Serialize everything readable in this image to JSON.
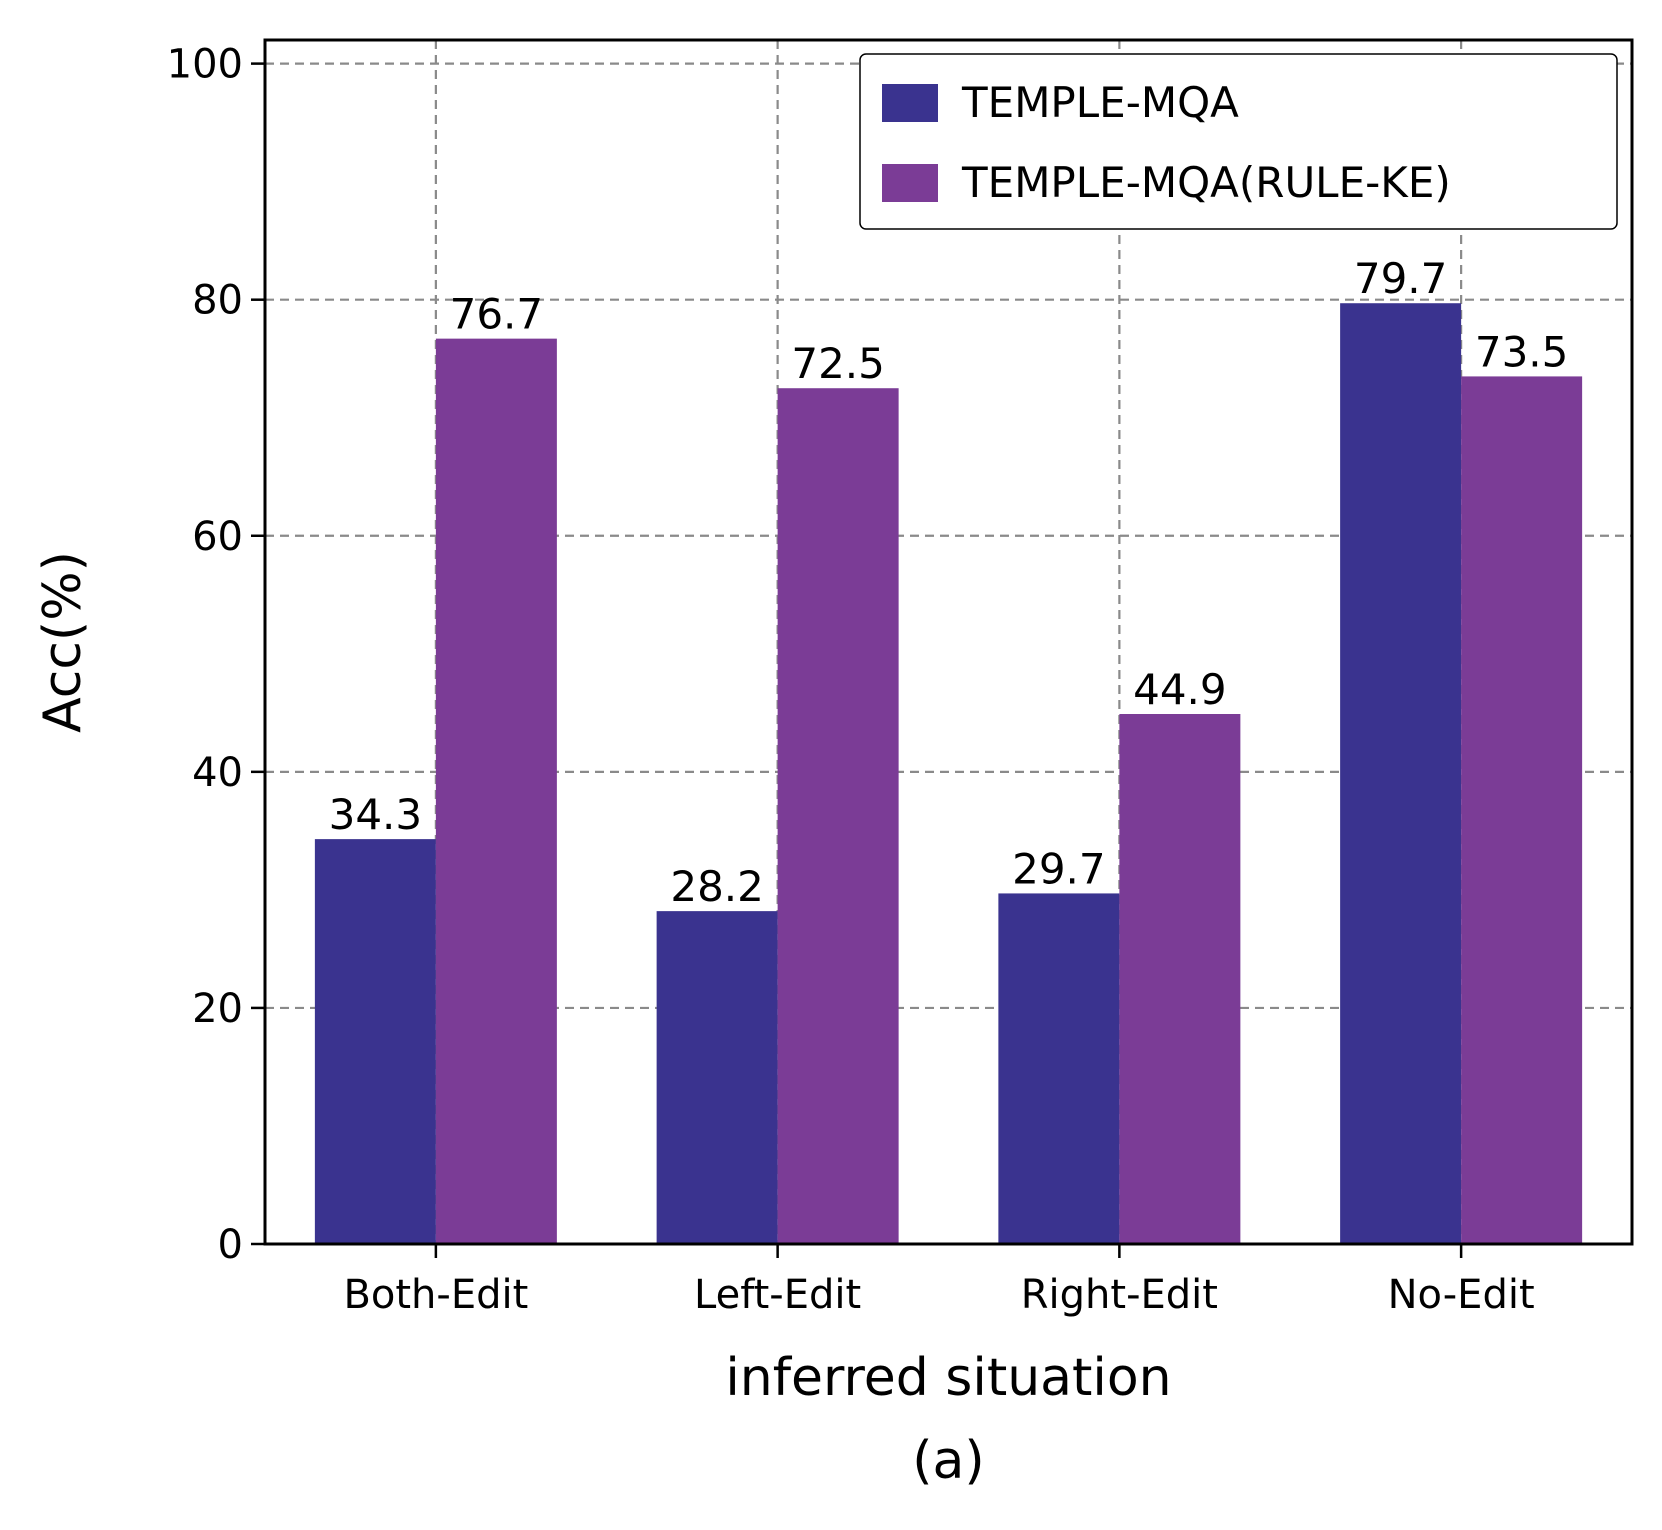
{
  "chart_data": {
    "type": "bar",
    "xlabel": "inferred situation",
    "caption": "(a)",
    "ylabel": "Acc(%)",
    "categories": [
      "Both-Edit",
      "Left-Edit",
      "Right-Edit",
      "No-Edit"
    ],
    "series": [
      {
        "name": "TEMPLE-MQA",
        "color": "#3a338f",
        "values": [
          34.3,
          28.2,
          29.7,
          79.7
        ],
        "labels": [
          "34.3",
          "28.2",
          "29.7",
          "79.7"
        ]
      },
      {
        "name": "TEMPLE-MQA(RULE-KE)",
        "color": "#7b3c96",
        "values": [
          76.7,
          72.5,
          44.9,
          73.5
        ],
        "labels": [
          "76.7",
          "72.5",
          "44.9",
          "73.5"
        ]
      }
    ],
    "ylim": [
      0,
      102
    ],
    "yticks": [
      0,
      20,
      40,
      60,
      80,
      100
    ],
    "grid": true,
    "legend_position": "top-right"
  }
}
